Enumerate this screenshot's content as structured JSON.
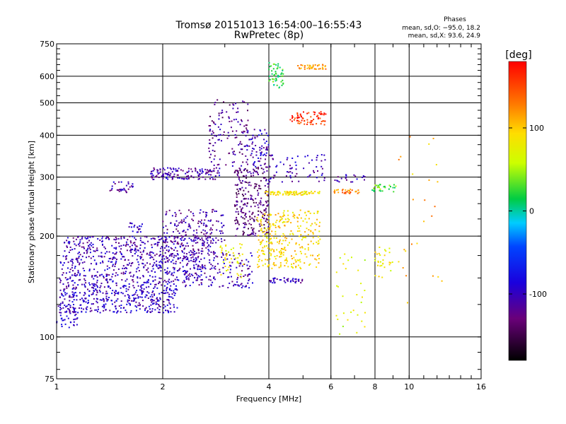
{
  "chart_data": {
    "type": "scatter",
    "title": "Tromsø 20151013 16:54:00–16:55:43",
    "subtitle": "RwPretec (8p)",
    "xlabel": "Frequency [MHz]",
    "ylabel": "Stationary phase Virtual Height [km]",
    "x_scale": "log",
    "y_scale": "log",
    "xlim": [
      1,
      16
    ],
    "ylim": [
      75,
      750
    ],
    "x_ticks": [
      1,
      2,
      4,
      6,
      8,
      10,
      16
    ],
    "x_tick_labels": [
      "1",
      "2",
      "4",
      "6",
      "8",
      "10",
      "16"
    ],
    "y_ticks": [
      75,
      100,
      200,
      300,
      400,
      500,
      600,
      750
    ],
    "y_tick_labels": [
      "75",
      "100",
      "200",
      "300",
      "400",
      "500",
      "600",
      "750"
    ],
    "grid": true,
    "phase_info": {
      "heading": "Phases",
      "line_o": "mean, sd,O: −95.0, 18.2",
      "line_x": "mean, sd,X:  93.6, 24.9"
    },
    "colorbar": {
      "label": "[deg]",
      "range": [
        -180,
        180
      ],
      "ticks": [
        100,
        0,
        -100
      ],
      "tick_labels": [
        "100",
        "0",
        "-100"
      ]
    },
    "clusters": [
      {
        "x0": 1.0,
        "x1": 1.15,
        "y0": 105,
        "y1": 125,
        "n": 40,
        "phase": -95
      },
      {
        "x0": 1.02,
        "x1": 2.2,
        "y0": 118,
        "y1": 145,
        "n": 420,
        "phase": -100
      },
      {
        "x0": 1.02,
        "x1": 2.6,
        "y0": 145,
        "y1": 175,
        "n": 380,
        "phase": -105
      },
      {
        "x0": 1.05,
        "x1": 2.8,
        "y0": 175,
        "y1": 200,
        "n": 300,
        "phase": -110
      },
      {
        "x0": 1.4,
        "x1": 1.65,
        "y0": 270,
        "y1": 290,
        "n": 30,
        "phase": -110
      },
      {
        "x0": 1.6,
        "x1": 1.75,
        "y0": 205,
        "y1": 220,
        "n": 20,
        "phase": -105
      },
      {
        "x0": 2.0,
        "x1": 3.0,
        "y0": 190,
        "y1": 240,
        "n": 160,
        "phase": -115
      },
      {
        "x0": 1.85,
        "x1": 2.9,
        "y0": 295,
        "y1": 320,
        "n": 140,
        "phase": -110
      },
      {
        "x0": 2.3,
        "x1": 3.6,
        "y0": 140,
        "y1": 180,
        "n": 160,
        "phase": -110
      },
      {
        "x0": 2.7,
        "x1": 3.5,
        "y0": 320,
        "y1": 520,
        "n": 120,
        "phase": -120
      },
      {
        "x0": 3.2,
        "x1": 4.0,
        "y0": 200,
        "y1": 320,
        "n": 260,
        "phase": -130
      },
      {
        "x0": 3.4,
        "x1": 4.0,
        "y0": 320,
        "y1": 420,
        "n": 80,
        "phase": -105
      },
      {
        "x0": 2.9,
        "x1": 3.4,
        "y0": 150,
        "y1": 190,
        "n": 40,
        "phase": 80
      },
      {
        "x0": 3.7,
        "x1": 5.6,
        "y0": 160,
        "y1": 240,
        "n": 300,
        "phase": 95
      },
      {
        "x0": 3.9,
        "x1": 5.6,
        "y0": 265,
        "y1": 272,
        "n": 90,
        "phase": 85
      },
      {
        "x0": 4.6,
        "x1": 5.8,
        "y0": 430,
        "y1": 470,
        "n": 70,
        "phase": 160
      },
      {
        "x0": 4.8,
        "x1": 5.8,
        "y0": 630,
        "y1": 650,
        "n": 40,
        "phase": 120
      },
      {
        "x0": 4.0,
        "x1": 4.4,
        "y0": 550,
        "y1": 660,
        "n": 50,
        "phase": 20
      },
      {
        "x0": 4.0,
        "x1": 5.0,
        "y0": 145,
        "y1": 150,
        "n": 40,
        "phase": -105
      },
      {
        "x0": 4.0,
        "x1": 5.8,
        "y0": 290,
        "y1": 350,
        "n": 70,
        "phase": -105
      },
      {
        "x0": 6.1,
        "x1": 7.3,
        "y0": 268,
        "y1": 276,
        "n": 30,
        "phase": 130
      },
      {
        "x0": 6.1,
        "x1": 7.5,
        "y0": 290,
        "y1": 305,
        "n": 20,
        "phase": -110
      },
      {
        "x0": 7.8,
        "x1": 9.2,
        "y0": 270,
        "y1": 285,
        "n": 30,
        "phase": 30
      },
      {
        "x0": 8.0,
        "x1": 9.0,
        "y0": 150,
        "y1": 190,
        "n": 30,
        "phase": 80
      },
      {
        "x0": 6.2,
        "x1": 7.5,
        "y0": 100,
        "y1": 180,
        "n": 30,
        "phase": 70
      },
      {
        "x0": 9.3,
        "x1": 12.5,
        "y0": 120,
        "y1": 420,
        "n": 25,
        "phase": 110
      }
    ]
  }
}
